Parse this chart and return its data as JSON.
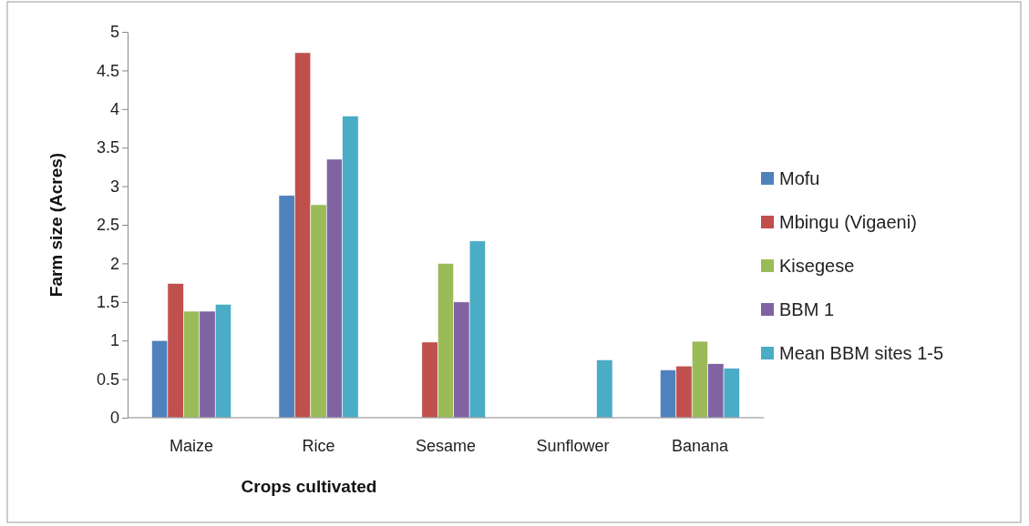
{
  "chart_data": {
    "type": "bar",
    "xlabel": "Crops cultivated",
    "ylabel": "Farm size (Acres)",
    "categories": [
      "Maize",
      "Rice",
      "Sesame",
      "Sunflower",
      "Banana"
    ],
    "series": [
      {
        "name": "Mofu",
        "color": "#4f81bd",
        "values": [
          1.0,
          2.88,
          null,
          null,
          0.62
        ]
      },
      {
        "name": "Mbingu (Vigaeni)",
        "color": "#c0504d",
        "values": [
          1.74,
          4.73,
          0.98,
          null,
          0.67
        ]
      },
      {
        "name": "Kisegese",
        "color": "#9bbb59",
        "values": [
          1.38,
          2.76,
          2.0,
          null,
          0.99
        ]
      },
      {
        "name": "BBM 1",
        "color": "#8064a2",
        "values": [
          1.38,
          3.35,
          1.5,
          null,
          0.7
        ]
      },
      {
        "name": "Mean BBM sites 1-5",
        "color": "#4bacc6",
        "values": [
          1.47,
          3.91,
          2.29,
          0.75,
          0.64
        ]
      }
    ],
    "ylim": [
      0,
      5
    ],
    "yticks": [
      0,
      0.5,
      1,
      1.5,
      2,
      2.5,
      3,
      3.5,
      4,
      4.5,
      5
    ],
    "grid": false,
    "legend": "right"
  }
}
